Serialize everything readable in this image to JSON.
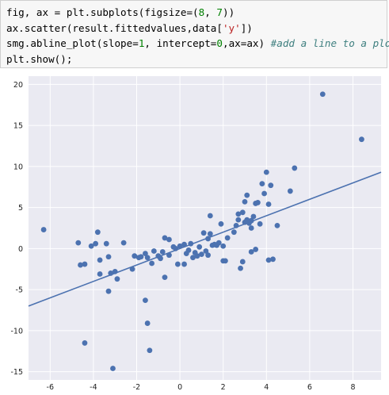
{
  "code": {
    "lines": [
      [
        {
          "t": "fig, ax = plt.subplots(figsize=("
        },
        {
          "t": "8",
          "k": "num"
        },
        {
          "t": ", "
        },
        {
          "t": "7",
          "k": "num"
        },
        {
          "t": "))"
        }
      ],
      [
        {
          "t": "ax.scatter(result.fittedvalues,data["
        },
        {
          "t": "'y'",
          "k": "str"
        },
        {
          "t": "])"
        }
      ],
      [
        {
          "t": "smg.abline_plot(slope="
        },
        {
          "t": "1",
          "k": "num"
        },
        {
          "t": ", intercept="
        },
        {
          "t": "0",
          "k": "num"
        },
        {
          "t": ",ax=ax) "
        },
        {
          "t": "#add a line to a plot",
          "k": "cmt"
        }
      ],
      [
        {
          "t": "plt.show();"
        }
      ]
    ]
  },
  "colors": {
    "plot_background": "#eaeaf2",
    "grid": "#ffffff",
    "points": "#4c72b0",
    "line": "#4c72b0"
  },
  "chart_data": {
    "type": "scatter",
    "xlim": [
      -7.0,
      9.3
    ],
    "ylim": [
      -16.0,
      21.0
    ],
    "xticks": [
      -6,
      -4,
      -2,
      0,
      2,
      4,
      6,
      8
    ],
    "yticks": [
      -15,
      -10,
      -5,
      0,
      5,
      10,
      15,
      20
    ],
    "grid": true,
    "line": {
      "slope": 1,
      "intercept": 0
    },
    "points": [
      [
        -6.3,
        2.3
      ],
      [
        -4.7,
        0.7
      ],
      [
        -4.6,
        -2.0
      ],
      [
        -4.4,
        -1.9
      ],
      [
        -4.4,
        -11.5
      ],
      [
        -4.1,
        0.3
      ],
      [
        -3.9,
        0.6
      ],
      [
        -3.8,
        2.0
      ],
      [
        -3.7,
        -3.1
      ],
      [
        -3.7,
        -1.4
      ],
      [
        -3.4,
        0.6
      ],
      [
        -3.3,
        -1.0
      ],
      [
        -3.3,
        -5.2
      ],
      [
        -3.2,
        -3.0
      ],
      [
        -3.0,
        -2.8
      ],
      [
        -2.9,
        -3.7
      ],
      [
        -3.1,
        -14.6
      ],
      [
        -2.6,
        0.7
      ],
      [
        -2.2,
        -2.5
      ],
      [
        -2.1,
        -0.9
      ],
      [
        -1.8,
        -1.0
      ],
      [
        -1.6,
        -0.6
      ],
      [
        -1.6,
        -6.3
      ],
      [
        -1.5,
        -9.1
      ],
      [
        -1.5,
        -1.1
      ],
      [
        -1.4,
        -12.4
      ],
      [
        -1.3,
        -1.8
      ],
      [
        -1.2,
        -0.3
      ],
      [
        -1.0,
        -0.9
      ],
      [
        -0.9,
        -1.2
      ],
      [
        -0.7,
        1.3
      ],
      [
        -0.7,
        -3.5
      ],
      [
        -0.5,
        1.1
      ],
      [
        -0.5,
        -0.8
      ],
      [
        -0.2,
        0.0
      ],
      [
        -0.1,
        -1.9
      ],
      [
        0.0,
        0.3
      ],
      [
        0.2,
        0.5
      ],
      [
        0.2,
        -1.9
      ],
      [
        0.4,
        -0.2
      ],
      [
        0.5,
        0.6
      ],
      [
        0.6,
        -1.1
      ],
      [
        0.7,
        -0.5
      ],
      [
        0.8,
        -0.9
      ],
      [
        0.9,
        0.2
      ],
      [
        1.0,
        -0.7
      ],
      [
        1.1,
        1.9
      ],
      [
        1.2,
        -0.3
      ],
      [
        1.3,
        1.2
      ],
      [
        1.3,
        -0.8
      ],
      [
        1.4,
        1.8
      ],
      [
        1.4,
        4.0
      ],
      [
        1.5,
        0.4
      ],
      [
        1.7,
        0.4
      ],
      [
        1.8,
        0.7
      ],
      [
        1.9,
        3.0
      ],
      [
        2.0,
        0.3
      ],
      [
        2.0,
        -1.5
      ],
      [
        2.1,
        -1.5
      ],
      [
        2.2,
        1.3
      ],
      [
        2.5,
        2.0
      ],
      [
        2.6,
        2.8
      ],
      [
        2.7,
        3.5
      ],
      [
        2.7,
        4.2
      ],
      [
        2.8,
        -2.4
      ],
      [
        2.9,
        -1.6
      ],
      [
        2.9,
        4.4
      ],
      [
        3.0,
        3.2
      ],
      [
        3.0,
        5.7
      ],
      [
        3.1,
        6.5
      ],
      [
        3.1,
        3.5
      ],
      [
        3.2,
        3.1
      ],
      [
        3.3,
        2.5
      ],
      [
        3.3,
        -0.4
      ],
      [
        3.3,
        3.4
      ],
      [
        3.4,
        3.9
      ],
      [
        3.5,
        -0.1
      ],
      [
        3.5,
        5.5
      ],
      [
        3.6,
        5.6
      ],
      [
        3.7,
        3.0
      ],
      [
        3.8,
        7.9
      ],
      [
        3.9,
        6.7
      ],
      [
        4.0,
        9.3
      ],
      [
        4.1,
        -1.4
      ],
      [
        4.1,
        5.4
      ],
      [
        4.2,
        7.7
      ],
      [
        4.3,
        -1.3
      ],
      [
        4.5,
        2.8
      ],
      [
        5.1,
        7.0
      ],
      [
        5.3,
        9.8
      ],
      [
        6.6,
        18.8
      ],
      [
        8.4,
        13.3
      ],
      [
        -0.3,
        0.2
      ],
      [
        0.3,
        -0.6
      ],
      [
        -1.9,
        -1.1
      ],
      [
        -0.8,
        -0.4
      ],
      [
        1.6,
        0.5
      ]
    ]
  }
}
